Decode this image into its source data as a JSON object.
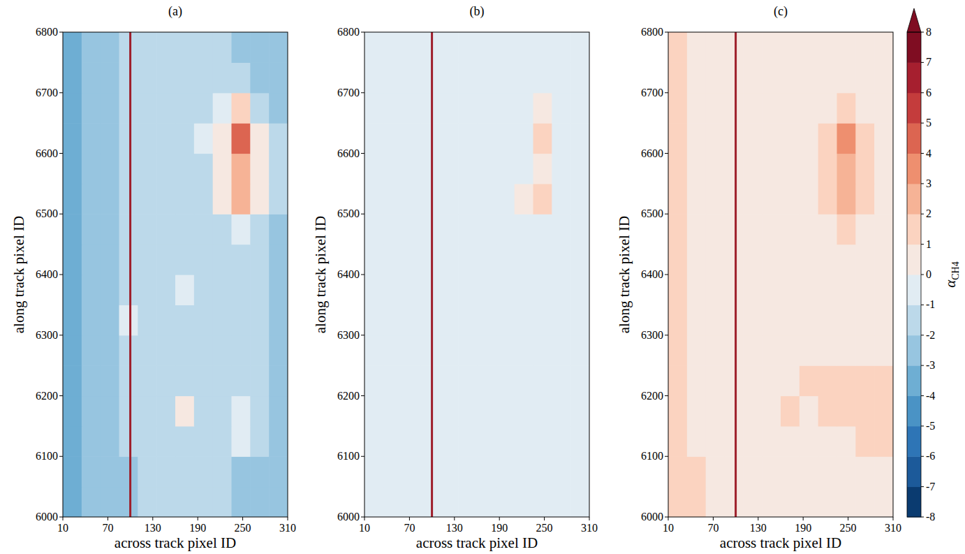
{
  "chart_data": [
    {
      "type": "heatmap",
      "title": "(a)",
      "x_label": "across track pixel ID",
      "y_label": "along track pixel ID",
      "xlim": [
        10,
        310
      ],
      "ylim": [
        6000,
        6800
      ],
      "xticks": [
        10,
        70,
        130,
        190,
        250,
        310
      ],
      "yticks": [
        6000,
        6100,
        6200,
        6300,
        6400,
        6500,
        6600,
        6700,
        6800
      ],
      "vline_x": 100,
      "x_bins": [
        10,
        35,
        60,
        85,
        110,
        135,
        160,
        185,
        210,
        235,
        260,
        285,
        310
      ],
      "y_bins": [
        6000,
        6050,
        6100,
        6150,
        6200,
        6250,
        6300,
        6350,
        6400,
        6450,
        6500,
        6550,
        6600,
        6650,
        6700,
        6750,
        6800
      ],
      "z": [
        [
          -3.5,
          -3,
          -2.5,
          -2.2,
          -2,
          -2,
          -2,
          -2,
          -2,
          -2.5,
          -2.8,
          -3
        ],
        [
          -3.5,
          -3,
          -2.5,
          -2.2,
          -2,
          -2,
          -2,
          -2,
          -2,
          -2.2,
          -2.5,
          -3
        ],
        [
          -3.5,
          -3,
          -2.5,
          -2,
          -2,
          -2,
          -1.5,
          -1.5,
          -1.5,
          -1,
          -1.5,
          -2.5
        ],
        [
          -3.5,
          -3,
          -2.5,
          -2,
          -2,
          -1.5,
          0,
          -1.5,
          -1.5,
          -1,
          -1.5,
          -2.5
        ],
        [
          -3.5,
          -3,
          -2.5,
          -2,
          -2,
          -1.5,
          -1.5,
          -1.5,
          -1.5,
          -1.5,
          -2,
          -2.5
        ],
        [
          -3.5,
          -3,
          -2.5,
          -1.5,
          -1.5,
          -1.5,
          -1.5,
          -1.5,
          -1.5,
          -1.8,
          -2,
          -2.5
        ],
        [
          -3.5,
          -3,
          -2.5,
          -1,
          -1.5,
          -1.5,
          -1.5,
          -1.5,
          -1.5,
          -1.8,
          -2,
          -2.5
        ],
        [
          -3.5,
          -3,
          -2.5,
          -2,
          -1.5,
          -1.5,
          -1,
          -1.5,
          -1.5,
          -1.8,
          -2,
          -2.5
        ],
        [
          -3.5,
          -3,
          -2.5,
          -2,
          -2,
          -1.5,
          -1.5,
          -1.5,
          -1.5,
          -1.5,
          -2,
          -2.5
        ],
        [
          -3.5,
          -3,
          -2.5,
          -2,
          -2,
          -2,
          -1.5,
          -1.5,
          -1.5,
          -0.5,
          -1.5,
          -2.5
        ],
        [
          -3.5,
          -3,
          -2.5,
          -2,
          -2,
          -2,
          -2,
          -1.5,
          0.5,
          2,
          0,
          -2
        ],
        [
          -3.5,
          -3,
          -2.5,
          -2,
          -2,
          -2,
          -2,
          -1.5,
          0,
          2,
          0.5,
          -2
        ],
        [
          -3.5,
          -3,
          -2.5,
          -2,
          -2,
          -2,
          -1.5,
          -1,
          0,
          4,
          0,
          -2
        ],
        [
          -3.5,
          -3,
          -2.5,
          -2,
          -2,
          -2,
          -2,
          -1.5,
          -1,
          1,
          -1.5,
          -2.5
        ],
        [
          -3.5,
          -3,
          -2.5,
          -2,
          -2,
          -2,
          -2,
          -2,
          -2,
          -2,
          -2.5,
          -3
        ],
        [
          -3.5,
          -3,
          -2.5,
          -2,
          -2,
          -2,
          -2,
          -2,
          -2,
          -2.5,
          -2.8,
          -3
        ]
      ]
    },
    {
      "type": "heatmap",
      "title": "(b)",
      "x_label": "across track pixel ID",
      "y_label": "along track pixel ID",
      "xlim": [
        10,
        310
      ],
      "ylim": [
        6000,
        6800
      ],
      "xticks": [
        10,
        70,
        130,
        190,
        250,
        310
      ],
      "yticks": [
        6000,
        6100,
        6200,
        6300,
        6400,
        6500,
        6600,
        6700,
        6800
      ],
      "vline_x": 100,
      "x_bins": [
        10,
        35,
        60,
        85,
        110,
        135,
        160,
        185,
        210,
        235,
        260,
        285,
        310
      ],
      "y_bins": [
        6000,
        6050,
        6100,
        6150,
        6200,
        6250,
        6300,
        6350,
        6400,
        6450,
        6500,
        6550,
        6600,
        6650,
        6700,
        6750,
        6800
      ],
      "z": [
        [
          -1,
          -1,
          -1,
          -1,
          -1,
          -1,
          -1,
          -1,
          -1,
          -1,
          -1,
          -0.5
        ],
        [
          -1,
          -1,
          -1,
          -1,
          -1,
          -1,
          -1,
          -1,
          -1,
          -1,
          -1,
          -0.5
        ],
        [
          -1,
          -1,
          -1,
          -1,
          -1,
          -1,
          -1,
          -1,
          -1,
          -0.5,
          -1,
          -1
        ],
        [
          -1,
          -1,
          -1,
          -1,
          -1,
          -1,
          -0.5,
          -1,
          -1,
          -1,
          -1,
          -1
        ],
        [
          -1,
          -1,
          -1,
          -1,
          -1,
          -1,
          -1,
          -1,
          -1,
          -1,
          -1,
          -1
        ],
        [
          -1,
          -1,
          -1,
          -1,
          -1,
          -1,
          -1,
          -1,
          -1,
          -1,
          -1,
          -1
        ],
        [
          -1,
          -1,
          -1,
          -0.5,
          -1,
          -1,
          -1,
          -1,
          -1,
          -1,
          -1,
          -1
        ],
        [
          -1,
          -1,
          -1,
          -1,
          -1,
          -1,
          -1,
          -1,
          -1,
          -1,
          -1,
          -1
        ],
        [
          -1,
          -1,
          -1,
          -1,
          -1,
          -1,
          -1,
          -1,
          -1,
          -1,
          -1,
          -1
        ],
        [
          -1,
          -1,
          -1,
          -1,
          -1,
          -1,
          -1,
          -1,
          -1,
          -0.5,
          -1,
          -1
        ],
        [
          -1,
          -1,
          -1,
          -1,
          -1,
          -1,
          -1,
          -1,
          0,
          1,
          -0.5,
          -1
        ],
        [
          -1,
          -1,
          -1,
          -1,
          -1,
          -1,
          -1,
          -1,
          -0.5,
          0.5,
          -0.5,
          -1
        ],
        [
          -1,
          -1,
          -1,
          -1,
          -1,
          -1,
          -1,
          -1,
          -0.5,
          1.5,
          -0.5,
          -1
        ],
        [
          -1,
          -1,
          -1,
          -1,
          -1,
          -1,
          -1,
          -1,
          -1,
          0,
          -1,
          -1
        ],
        [
          -1,
          -1,
          -1,
          -1,
          -1,
          -1,
          -1,
          -1,
          -1,
          -1,
          -1,
          -1
        ],
        [
          -1,
          -1,
          -1,
          -1,
          -1,
          -1,
          -1,
          -1,
          -1,
          -1,
          -1,
          -1
        ]
      ]
    },
    {
      "type": "heatmap",
      "title": "(c)",
      "x_label": "across track pixel ID",
      "y_label": "along track pixel ID",
      "xlim": [
        10,
        310
      ],
      "ylim": [
        6000,
        6800
      ],
      "xticks": [
        10,
        70,
        130,
        190,
        250,
        310
      ],
      "yticks": [
        6000,
        6100,
        6200,
        6300,
        6400,
        6500,
        6600,
        6700,
        6800
      ],
      "vline_x": 100,
      "x_bins": [
        10,
        35,
        60,
        85,
        110,
        135,
        160,
        185,
        210,
        235,
        260,
        285,
        310
      ],
      "y_bins": [
        6000,
        6050,
        6100,
        6150,
        6200,
        6250,
        6300,
        6350,
        6400,
        6450,
        6500,
        6550,
        6600,
        6650,
        6700,
        6750,
        6800
      ],
      "z": [
        [
          1.5,
          1.5,
          0.5,
          0.3,
          0.3,
          0.3,
          0.3,
          0.3,
          0.3,
          0.3,
          0.5,
          0.5
        ],
        [
          1.5,
          1,
          0.5,
          0.3,
          0.3,
          0.3,
          0.3,
          0.3,
          0.3,
          0.3,
          0.5,
          0.5
        ],
        [
          1,
          0.5,
          0.3,
          0.3,
          0.3,
          0.3,
          0.3,
          0.3,
          0.5,
          0.5,
          1,
          1
        ],
        [
          1,
          0.5,
          0.3,
          0.3,
          0.3,
          0.3,
          1,
          0.5,
          1.5,
          1.5,
          1.5,
          1.5
        ],
        [
          1,
          0.5,
          0.3,
          0.3,
          0.3,
          0.5,
          0.5,
          1,
          1.5,
          1.5,
          1.5,
          1.5
        ],
        [
          1,
          0.5,
          0.3,
          0.5,
          0.3,
          0.3,
          0.3,
          0.3,
          0.5,
          0.5,
          0.5,
          0.5
        ],
        [
          1,
          0.5,
          0.3,
          0.5,
          0.3,
          0.3,
          0.3,
          0.3,
          0.3,
          0.3,
          0.3,
          0.5
        ],
        [
          1,
          0.5,
          0.3,
          0.3,
          0.3,
          0.3,
          0.3,
          0.3,
          0.3,
          0.3,
          0.3,
          0.5
        ],
        [
          1,
          0.5,
          0.3,
          0.3,
          0.3,
          0.3,
          0.3,
          0.3,
          0.3,
          0.3,
          0.3,
          0.5
        ],
        [
          1,
          0.5,
          0.3,
          0.3,
          0.3,
          0.3,
          0.3,
          0.3,
          0.3,
          1,
          0.3,
          0.5
        ],
        [
          1,
          0.5,
          0.3,
          0.3,
          0.3,
          0.3,
          0.3,
          0.3,
          1.5,
          2.5,
          1,
          0.5
        ],
        [
          1,
          0.5,
          0.3,
          0.3,
          0.3,
          0.3,
          0.3,
          0.3,
          1,
          2.5,
          1,
          0.5
        ],
        [
          1,
          0.5,
          0.3,
          0.3,
          0.3,
          0.3,
          0.3,
          0.5,
          1,
          3,
          1,
          0.5
        ],
        [
          1,
          0.5,
          0.3,
          0.3,
          0.3,
          0.3,
          0.3,
          0.3,
          0.3,
          1.5,
          0.3,
          0.5
        ],
        [
          1,
          0.5,
          0.3,
          0.3,
          0.3,
          0.3,
          0.3,
          0.3,
          0.3,
          0.3,
          0.3,
          0.5
        ],
        [
          1,
          0.5,
          0.5,
          0.3,
          0.3,
          0.3,
          0.3,
          0.3,
          0.3,
          0.3,
          0.5,
          0.5
        ]
      ],
      "colorbar": {
        "range": [
          -8,
          8
        ],
        "ticks": [
          -8,
          -7,
          -6,
          -5,
          -4,
          -3,
          -2,
          -1,
          0,
          1,
          2,
          3,
          4,
          5,
          6,
          7,
          8
        ],
        "label": "α",
        "label_subscript": "CH4",
        "colors": [
          "#0a3b70",
          "#1c5a9a",
          "#2e75b6",
          "#4a93c5",
          "#6eaed3",
          "#97c5e0",
          "#bcd9ea",
          "#e1ecf3",
          "#f6e8e1",
          "#fbd3c0",
          "#f6b396",
          "#ee8f6f",
          "#dc6551",
          "#c43c3c",
          "#a61f2f",
          "#7f0d22"
        ]
      }
    }
  ]
}
